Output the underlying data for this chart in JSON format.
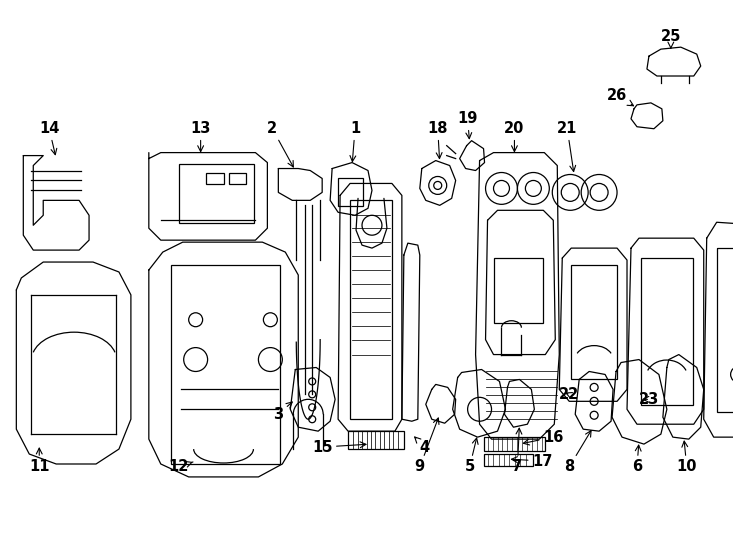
{
  "bg": "#ffffff",
  "lc": "#000000",
  "lw": 0.9,
  "figw": 7.34,
  "figh": 5.4,
  "dpi": 100,
  "label_fs": 10.5
}
